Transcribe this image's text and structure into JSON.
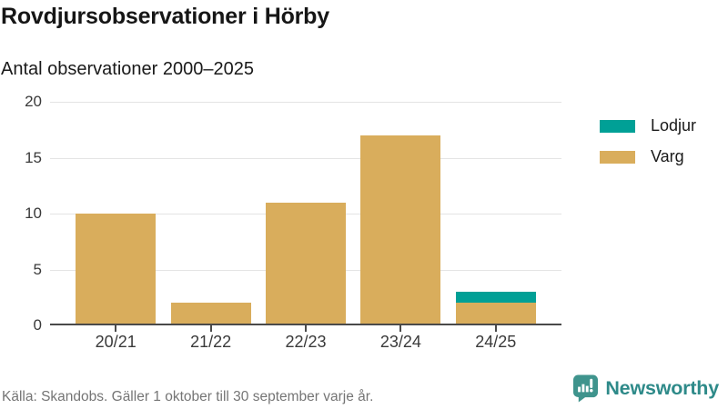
{
  "header": {
    "title": "Rovdjursobservationer i Hörby",
    "subtitle": "Antal observationer 2000–2025"
  },
  "chart_data": {
    "type": "bar",
    "stacked": true,
    "title": "Rovdjursobservationer i Hörby",
    "subtitle": "Antal observationer 2000–2025",
    "categories": [
      "20/21",
      "21/22",
      "22/23",
      "23/24",
      "24/25"
    ],
    "series": [
      {
        "name": "Lodjur",
        "color": "#00a096",
        "values": [
          0,
          0,
          0,
          0,
          1
        ]
      },
      {
        "name": "Varg",
        "color": "#d9ad5c",
        "values": [
          10,
          2,
          11,
          17,
          2
        ]
      }
    ],
    "stack_order_bottom_to_top": [
      "Varg",
      "Lodjur"
    ],
    "totals": [
      10,
      2,
      11,
      17,
      3
    ],
    "xlabel": "",
    "ylabel": "",
    "ylim": [
      0,
      20
    ],
    "yticks": [
      0,
      5,
      10,
      15,
      20
    ],
    "grid": true,
    "legend_position": "right"
  },
  "legend": {
    "items": [
      {
        "label": "Lodjur",
        "color": "#00a096"
      },
      {
        "label": "Varg",
        "color": "#d9ad5c"
      }
    ]
  },
  "footer": {
    "source": "Källa: Skandobs. Gäller 1 oktober till 30 september varje år."
  },
  "brand": {
    "name": "Newsworthy",
    "icon": "newsworthy-logo-icon",
    "text_color": "#2e8a89",
    "icon_color": "#3f948d"
  },
  "colors": {
    "bar_varg": "#d9ad5c",
    "bar_lodjur": "#00a096",
    "grid": "#e4e4e4",
    "axis": "#4a4a4a",
    "text": "#1a1a1a",
    "muted": "#757575",
    "background": "#ffffff"
  }
}
